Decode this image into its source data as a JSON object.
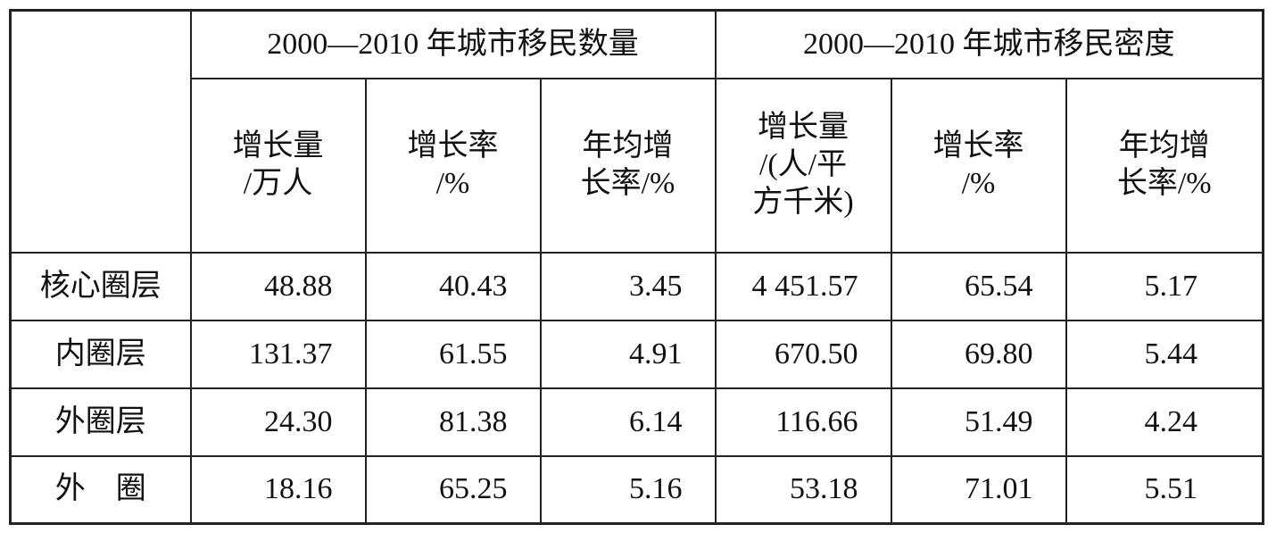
{
  "table": {
    "groups": [
      "2000—2010 年城市移民数量",
      "2000—2010 年城市移民密度"
    ],
    "subheaders": [
      [
        "增长量",
        "/万人"
      ],
      [
        "增长率",
        "/%"
      ],
      [
        "年均增",
        "长率/%"
      ],
      [
        "增长量",
        "/(人/平",
        "方千米)"
      ],
      [
        "增长率",
        "/%"
      ],
      [
        "年均增",
        "长率/%"
      ]
    ],
    "rows": [
      {
        "label": "核心圈层",
        "values": [
          "48.88",
          "40.43",
          "3.45",
          "4 451.57",
          "65.54",
          "5.17"
        ]
      },
      {
        "label": "内圈层",
        "values": [
          "131.37",
          "61.55",
          "4.91",
          "670.50",
          "69.80",
          "5.44"
        ]
      },
      {
        "label": "外圈层",
        "values": [
          "24.30",
          "81.38",
          "6.14",
          "116.66",
          "51.49",
          "4.24"
        ]
      },
      {
        "label": "外　圈",
        "values": [
          "18.16",
          "65.25",
          "5.16",
          "53.18",
          "71.01",
          "5.51"
        ]
      }
    ]
  }
}
